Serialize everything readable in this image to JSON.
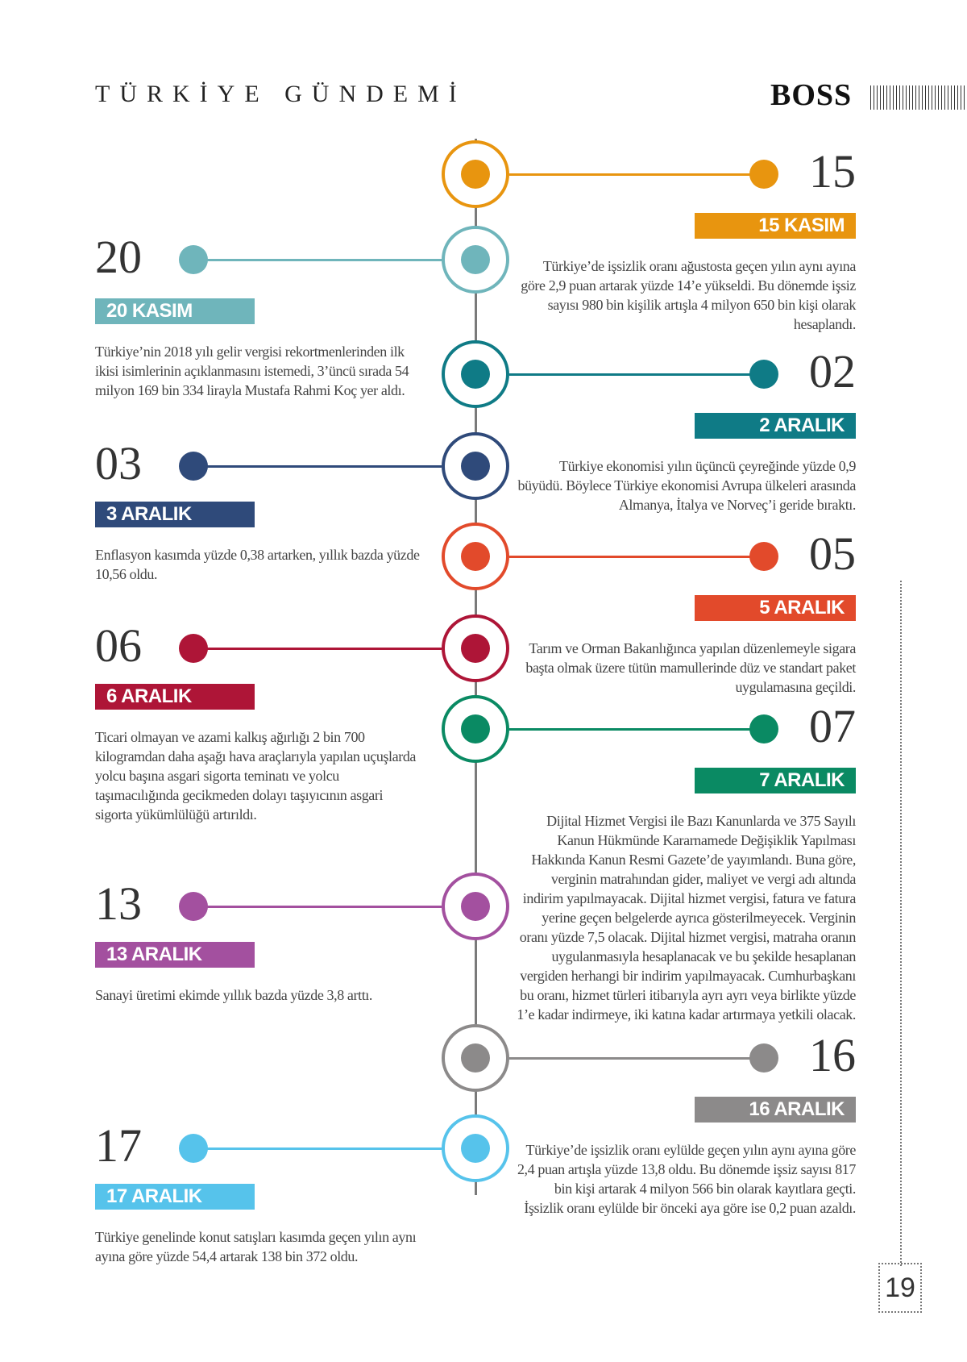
{
  "header": {
    "section_title": "TÜRKİYE GÜNDEMİ",
    "brand": "BOSS"
  },
  "page_number": "19",
  "colors": {
    "orange": "#E8950F",
    "teal_light": "#6FB5BB",
    "teal_dark": "#0F7B86",
    "navy": "#2F4A7A",
    "red_orange": "#E24A2B",
    "crimson": "#AE1537",
    "green": "#0A8A63",
    "purple": "#A3509F",
    "gray": "#8C8A8A",
    "sky": "#56C3EB"
  },
  "events": [
    {
      "day": "15",
      "date": "15 KASIM",
      "side": "right",
      "color": "#E8950F",
      "text": "Türkiye’de işsizlik oranı ağustosta geçen yılın aynı ayına göre 2,9 puan artarak yüzde 14’e yükseldi. Bu dönemde işsiz sayısı 980 bin kişilik artışla 4 milyon 650 bin kişi olarak hesaplandı."
    },
    {
      "day": "20",
      "date": "20 KASIM",
      "side": "left",
      "color": "#6FB5BB",
      "text": "Türkiye’nin 2018 yılı gelir vergisi rekortmenlerinden ilk ikisi isimlerinin açıklanmasını istemedi, 3’üncü sırada 54 milyon 169 bin 334 lirayla Mustafa Rahmi Koç yer aldı."
    },
    {
      "day": "02",
      "date": "2 ARALIK",
      "side": "right",
      "color": "#0F7B86",
      "text": "Türkiye ekonomisi yılın üçüncü çeyreğinde yüzde 0,9 büyüdü. Böylece Türkiye ekonomisi Avrupa ülkeleri arasında Almanya, İtalya ve Norveç’i geride bıraktı."
    },
    {
      "day": "03",
      "date": "3 ARALIK",
      "side": "left",
      "color": "#2F4A7A",
      "text": "Enflasyon kasımda yüzde 0,38 artarken, yıllık bazda yüzde 10,56 oldu."
    },
    {
      "day": "05",
      "date": "5 ARALIK",
      "side": "right",
      "color": "#E24A2B",
      "text": "Tarım ve Orman Bakanlığınca yapılan düzenlemeyle sigara başta olmak üzere tütün mamullerinde düz ve standart paket uygulamasına geçildi."
    },
    {
      "day": "06",
      "date": "6 ARALIK",
      "side": "left",
      "color": "#AE1537",
      "text": "Ticari olmayan ve azami kalkış ağırlığı 2 bin 700 kilogramdan daha aşağı hava araçlarıyla yapılan uçuşlarda yolcu başına asgari sigorta teminatı ve yolcu taşımacılığında gecikmeden dolayı taşıyıcının asgari sigorta yükümlülüğü artırıldı."
    },
    {
      "day": "07",
      "date": "7 ARALIK",
      "side": "right",
      "color": "#0A8A63",
      "text": "Dijital Hizmet Vergisi ile Bazı Kanunlarda ve 375 Sayılı Kanun Hükmünde Kararnamede Değişiklik Yapılması Hakkında Kanun Resmi Gazete’de yayımlandı. Buna göre, verginin matrahından gider, maliyet ve vergi adı altında indirim yapılmayacak. Dijital hizmet vergisi, fatura ve fatura yerine geçen belgelerde ayrıca gösterilmeyecek. Verginin oranı yüzde 7,5 olacak. Dijital hizmet vergisi, matraha oranın uygulanmasıyla hesaplanacak ve bu şekilde hesaplanan vergiden herhangi bir indirim yapılmayacak. Cumhurbaşkanı bu oranı, hizmet türleri itibarıyla ayrı ayrı veya birlikte yüzde 1’e kadar indirmeye, iki katına kadar artırmaya yetkili olacak."
    },
    {
      "day": "13",
      "date": "13 ARALIK",
      "side": "left",
      "color": "#A3509F",
      "text": "Sanayi üretimi ekimde yıllık bazda yüzde 3,8 arttı."
    },
    {
      "day": "16",
      "date": "16 ARALIK",
      "side": "right",
      "color": "#8C8A8A",
      "text": "Türkiye’de işsizlik oranı eylülde geçen yılın aynı ayına göre 2,4 puan artışla yüzde 13,8 oldu. Bu dönemde işsiz sayısı 817 bin kişi artarak 4 milyon 566 bin olarak kayıtlara geçti. İşsizlik oranı eylülde bir önceki aya göre ise 0,2 puan azaldı."
    },
    {
      "day": "17",
      "date": "17 ARALIK",
      "side": "left",
      "color": "#56C3EB",
      "text": "Türkiye genelinde konut satışları kasımda geçen yılın aynı ayına göre yüzde 54,4 artarak 138 bin 372 oldu."
    }
  ]
}
